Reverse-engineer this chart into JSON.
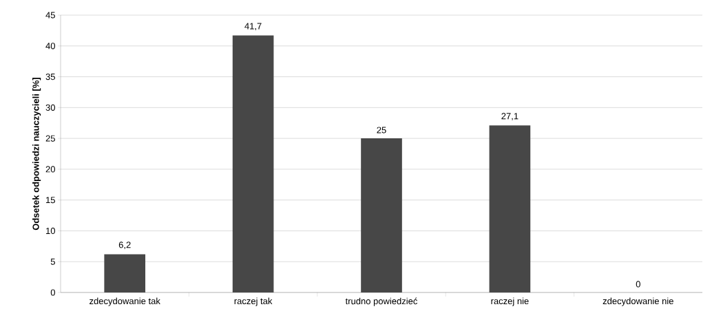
{
  "chart_data": {
    "type": "bar",
    "ylabel": "Odsetek odpowiedzi nauczycieli [%]",
    "categories": [
      "zdecydowanie tak",
      "raczej tak",
      "trudno powiedzieć",
      "raczej nie",
      "zdecydowanie nie"
    ],
    "values": [
      6.2,
      41.7,
      25,
      27.1,
      0
    ],
    "value_labels": [
      "6,2",
      "41,7",
      "25",
      "27,1",
      "0"
    ],
    "color": "#474747",
    "ylim": [
      0,
      45
    ],
    "yticks": [
      0,
      5,
      10,
      15,
      20,
      25,
      30,
      35,
      40,
      45
    ],
    "grid": "y"
  }
}
